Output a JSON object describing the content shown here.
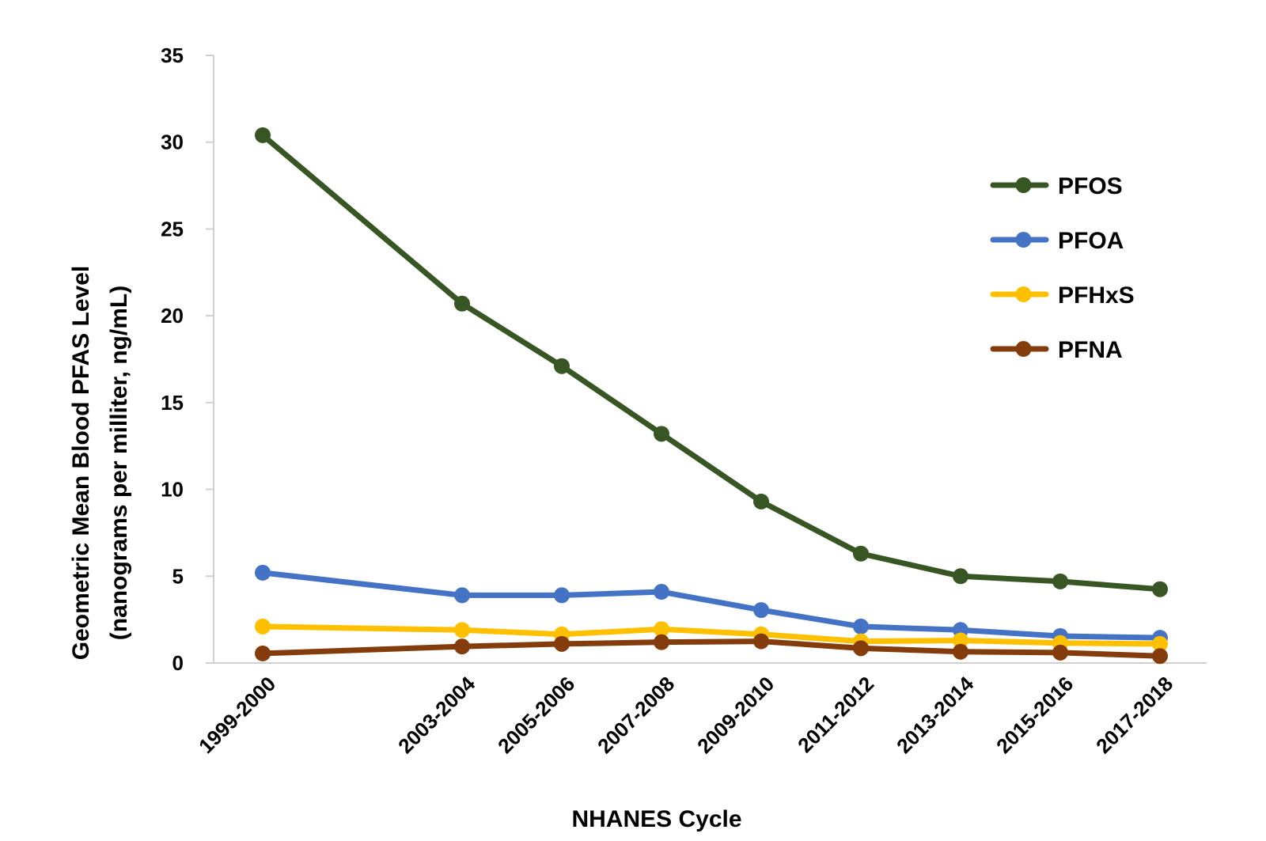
{
  "chart_data": {
    "type": "line",
    "title": "",
    "xlabel": "NHANES Cycle",
    "ylabel_lines": [
      "Geometric Mean Blood PFAS Level",
      "(nanograms per milliter, ng/mL)"
    ],
    "categories": [
      "1999-2000",
      "2003-2004",
      "2005-2006",
      "2007-2008",
      "2009-2010",
      "2011-2012",
      "2013-2014",
      "2015-2016",
      "2017-2018"
    ],
    "category_years": [
      1999,
      2003,
      2005,
      2007,
      2009,
      2011,
      2013,
      2015,
      2017
    ],
    "ylim": [
      0,
      35
    ],
    "yticks": [
      0,
      5,
      10,
      15,
      20,
      25,
      30,
      35
    ],
    "grid": false,
    "legend_position": "right",
    "series": [
      {
        "name": "PFOS",
        "color": "#375623",
        "values": [
          30.4,
          20.7,
          17.1,
          13.2,
          9.3,
          6.3,
          5.0,
          4.7,
          4.25
        ]
      },
      {
        "name": "PFOA",
        "color": "#4472C4",
        "values": [
          5.2,
          3.9,
          3.9,
          4.1,
          3.05,
          2.1,
          1.9,
          1.55,
          1.45
        ]
      },
      {
        "name": "PFHxS",
        "color": "#FFC000",
        "values": [
          2.1,
          1.9,
          1.65,
          1.95,
          1.65,
          1.25,
          1.3,
          1.15,
          1.1
        ]
      },
      {
        "name": "PFNA",
        "color": "#843C0C",
        "values": [
          0.55,
          0.95,
          1.1,
          1.2,
          1.25,
          0.85,
          0.65,
          0.6,
          0.4
        ]
      }
    ]
  }
}
